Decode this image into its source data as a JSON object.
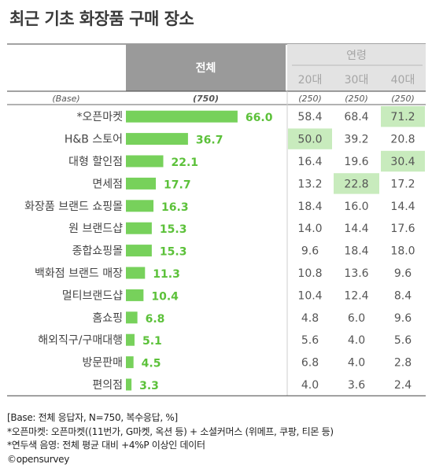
{
  "title": "최근 기초 화장품 구매 장소",
  "header": {
    "total_label": "전체",
    "age_group_label": "연령",
    "age_columns": [
      "20대",
      "30대",
      "40대"
    ],
    "base_label": "(Base)",
    "base_total": "(750)",
    "base_ages": [
      "(250)",
      "(250)",
      "(250)"
    ]
  },
  "chart_data": {
    "type": "bar",
    "categories": [
      "*오픈마켓",
      "H&B 스토어",
      "대형 할인점",
      "면세점",
      "화장품 브랜드 쇼핑몰",
      "원 브랜드샵",
      "종합쇼핑몰",
      "백화점 브랜드 매장",
      "멀티브랜드샵",
      "홈쇼핑",
      "해외직구/구매대행",
      "방문판매",
      "편의점"
    ],
    "values": [
      66.0,
      36.7,
      22.1,
      17.7,
      16.3,
      15.3,
      15.3,
      11.3,
      10.4,
      6.8,
      5.1,
      4.5,
      3.3
    ],
    "value_labels": [
      "66.0",
      "36.7",
      "22.1",
      "17.7",
      "16.3",
      "15.3",
      "15.3",
      "11.3",
      "10.4",
      "6.8",
      "5.1",
      "4.5",
      "3.3"
    ],
    "table": {
      "columns": [
        "20대",
        "30대",
        "40대"
      ],
      "rows": [
        [
          "58.4",
          "68.4",
          "71.2"
        ],
        [
          "50.0",
          "39.2",
          "20.8"
        ],
        [
          "16.4",
          "19.6",
          "30.4"
        ],
        [
          "13.2",
          "22.8",
          "17.2"
        ],
        [
          "18.4",
          "16.0",
          "14.4"
        ],
        [
          "14.0",
          "14.4",
          "17.6"
        ],
        [
          "9.6",
          "18.4",
          "18.0"
        ],
        [
          "10.8",
          "13.6",
          "9.6"
        ],
        [
          "10.4",
          "12.4",
          "8.4"
        ],
        [
          "4.8",
          "6.0",
          "9.6"
        ],
        [
          "5.6",
          "4.0",
          "5.6"
        ],
        [
          "6.8",
          "4.0",
          "2.8"
        ],
        [
          "4.0",
          "3.6",
          "2.4"
        ]
      ],
      "highlighted": [
        [
          0,
          2
        ],
        [
          1,
          0
        ],
        [
          2,
          2
        ],
        [
          3,
          1
        ]
      ]
    },
    "xlim": [
      0,
      100
    ]
  },
  "colors": {
    "bar": "#77d15b",
    "value_text": "#5cc13a",
    "header_total_bg": "#9a9a9a",
    "header_age_bg": "#e3e3e3",
    "highlight_bg": "#c8ebbd",
    "table_text": "#555555",
    "age_header_text": "#a5a5a5"
  },
  "notes": [
    "[Base: 전체 응답자, N=750, 복수응답, %]",
    "*오픈마켓: 오픈마켓((11번가, G마켓, 옥션 등) + 소셜커머스 (위메프, 쿠팡, 티몬 등)",
    "*연두색 음영: 전체 평균 대비 +4%P 이상인 데이터",
    "©opensurvey"
  ]
}
